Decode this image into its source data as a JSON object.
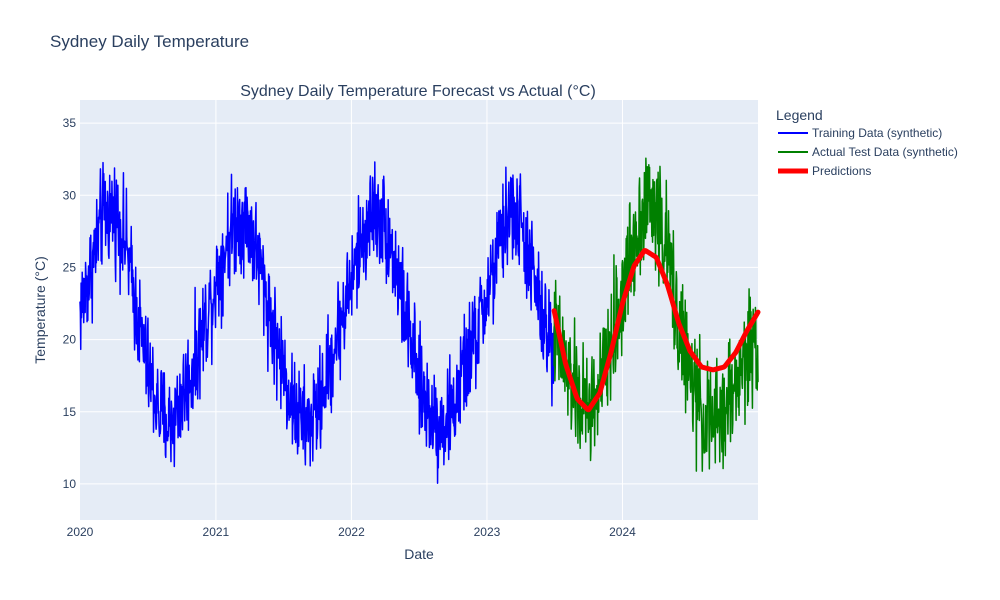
{
  "page": {
    "title": "Sydney Daily Temperature"
  },
  "chart_data": {
    "type": "line",
    "title": "Sydney Daily Temperature Forecast vs Actual (°C)",
    "xlabel": "Date",
    "ylabel": "Temperature (°C)",
    "x_type": "date",
    "xlim": [
      "2020-01-01",
      "2024-12-31"
    ],
    "ylim": [
      7.5,
      36.6
    ],
    "x_ticks": [
      "2020-01-01",
      "2021-01-01",
      "2022-01-01",
      "2023-01-01",
      "2024-01-01"
    ],
    "x_tick_labels": [
      "2020",
      "2021",
      "2022",
      "2023",
      "2024"
    ],
    "y_ticks": [
      10,
      15,
      20,
      25,
      30,
      35
    ],
    "grid": true,
    "legend": {
      "title": "Legend",
      "placement": "right"
    },
    "series": [
      {
        "name": "Training Data (synthetic)",
        "color": "#0000ff",
        "line": "noisy",
        "x": [
          "2020-01-01",
          "2020-02-01",
          "2020-03-01",
          "2020-04-01",
          "2020-05-01",
          "2020-06-01",
          "2020-07-01",
          "2020-08-01",
          "2020-09-01",
          "2020-10-01",
          "2020-11-01",
          "2020-12-01",
          "2021-01-01",
          "2021-02-01",
          "2021-03-01",
          "2021-04-01",
          "2021-05-01",
          "2021-06-01",
          "2021-07-01",
          "2021-08-01",
          "2021-09-01",
          "2021-10-01",
          "2021-11-01",
          "2021-12-01",
          "2022-01-01",
          "2022-02-01",
          "2022-03-01",
          "2022-04-01",
          "2022-05-01",
          "2022-06-01",
          "2022-07-01",
          "2022-08-01",
          "2022-09-01",
          "2022-10-01",
          "2022-11-01",
          "2022-12-01",
          "2023-01-01",
          "2023-02-01",
          "2023-03-01",
          "2023-04-01",
          "2023-05-01",
          "2023-06-01",
          "2023-07-01"
        ],
        "y": [
          22,
          25,
          28.5,
          29,
          27,
          22,
          18,
          15,
          14,
          16,
          18,
          21,
          24,
          27,
          28.5,
          28,
          25,
          21,
          18,
          15,
          14,
          15,
          18,
          21,
          24,
          27,
          29,
          28,
          25,
          21,
          17,
          15,
          14,
          15,
          18,
          20,
          23,
          26,
          29,
          28,
          25,
          21,
          19.5
        ],
        "noise_amplitude": 3.5
      },
      {
        "name": "Actual Test Data (synthetic)",
        "color": "#008000",
        "line": "noisy",
        "x": [
          "2023-07-01",
          "2023-08-01",
          "2023-09-01",
          "2023-10-01",
          "2023-11-01",
          "2023-12-01",
          "2024-01-01",
          "2024-02-01",
          "2024-03-01",
          "2024-04-01",
          "2024-05-01",
          "2024-06-01",
          "2024-07-01",
          "2024-08-01",
          "2024-09-01",
          "2024-10-01",
          "2024-11-01",
          "2024-12-01",
          "2024-12-31"
        ],
        "y": [
          20.5,
          18,
          16,
          15,
          16.5,
          19.5,
          23,
          27,
          29.5,
          29,
          26,
          21,
          17.5,
          15,
          14,
          15,
          17,
          19,
          20.5
        ],
        "noise_amplitude": 4
      },
      {
        "name": "Predictions",
        "color": "#ff0000",
        "line": "smooth",
        "x": [
          "2023-07-01",
          "2023-08-01",
          "2023-09-01",
          "2023-10-01",
          "2023-11-01",
          "2023-12-01",
          "2024-01-01",
          "2024-02-01",
          "2024-03-01",
          "2024-04-01",
          "2024-05-01",
          "2024-06-01",
          "2024-07-01",
          "2024-08-01",
          "2024-09-01",
          "2024-10-01",
          "2024-11-01",
          "2024-12-01",
          "2024-12-31"
        ],
        "y": [
          22,
          18.3,
          15.9,
          15.1,
          16.3,
          19.1,
          22.5,
          25.1,
          26.2,
          25.7,
          23.8,
          21.1,
          19.2,
          18.1,
          17.9,
          18.1,
          19.1,
          20.6,
          21.9
        ]
      }
    ]
  }
}
